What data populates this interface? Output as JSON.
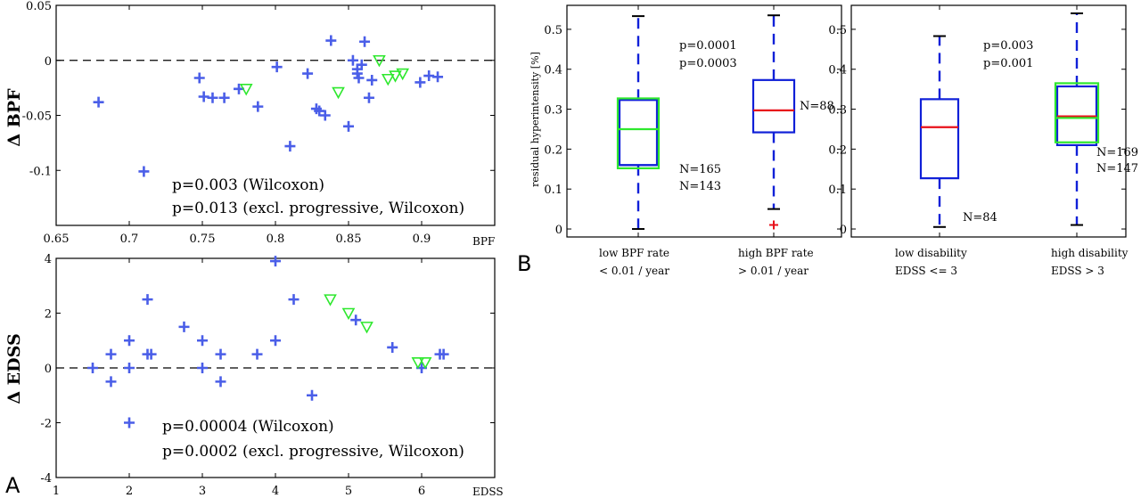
{
  "panel_labels": {
    "a": "A",
    "b": "B"
  },
  "colors": {
    "blue": "#4a5ee8",
    "green": "#2ee82e",
    "box_blue": "#1020d8",
    "median_red": "#e8101a",
    "outlier_red": "#e8101a",
    "black": "#000000"
  },
  "chart_data": [
    {
      "type": "scatter",
      "title": "",
      "xlabel": "BPF",
      "ylabel": "Δ BPF",
      "xlim": [
        0.65,
        0.95
      ],
      "ylim": [
        -0.15,
        0.05
      ],
      "xticks": [
        0.65,
        0.7,
        0.75,
        0.8,
        0.85,
        0.9
      ],
      "xtick_labels": [
        "0.65",
        "0.7",
        "0.75",
        "0.8",
        "0.85",
        "0.9"
      ],
      "yticks": [
        0.05,
        0,
        -0.05,
        -0.1
      ],
      "ytick_labels": [
        "0.05",
        "0",
        "-0.05",
        "-0.1"
      ],
      "reference_line": 0,
      "series": [
        {
          "marker": "plus",
          "color": "#4a5ee8",
          "x": [
            0.679,
            0.71,
            0.748,
            0.751,
            0.757,
            0.765,
            0.775,
            0.788,
            0.801,
            0.81,
            0.822,
            0.828,
            0.83,
            0.834,
            0.838,
            0.85,
            0.853,
            0.856,
            0.856,
            0.857,
            0.859,
            0.861,
            0.864,
            0.866,
            0.899,
            0.905,
            0.911
          ],
          "y": [
            -0.038,
            -0.101,
            -0.016,
            -0.033,
            -0.034,
            -0.034,
            -0.026,
            -0.042,
            -0.006,
            -0.078,
            -0.012,
            -0.044,
            -0.046,
            -0.05,
            0.018,
            -0.06,
            0.0,
            -0.008,
            -0.012,
            -0.016,
            -0.004,
            0.017,
            -0.034,
            -0.018,
            -0.02,
            -0.014,
            -0.015
          ]
        },
        {
          "marker": "triangle",
          "color": "#2ee82e",
          "x": [
            0.78,
            0.843,
            0.871,
            0.877,
            0.882,
            0.887
          ],
          "y": [
            -0.026,
            -0.029,
            0.0,
            -0.017,
            -0.014,
            -0.012
          ]
        }
      ],
      "annotations": [
        {
          "text": "p=0.003 (Wilcoxon)",
          "color": "#4a5ee8"
        },
        {
          "text": "p=0.013 (excl. progressive, Wilcoxon)",
          "color": "#2ee82e"
        }
      ]
    },
    {
      "type": "scatter",
      "title": "",
      "xlabel": "EDSS",
      "ylabel": "Δ EDSS",
      "xlim": [
        1,
        7
      ],
      "ylim": [
        -4,
        4
      ],
      "xticks": [
        1,
        2,
        3,
        4,
        5,
        6
      ],
      "xtick_labels": [
        "1",
        "2",
        "3",
        "4",
        "5",
        "6"
      ],
      "yticks": [
        4,
        2,
        0,
        -2,
        -4
      ],
      "ytick_labels": [
        "4",
        "2",
        "0",
        "-2",
        "-4"
      ],
      "reference_line": 0,
      "series": [
        {
          "marker": "plus",
          "color": "#4a5ee8",
          "x": [
            1.5,
            1.75,
            1.75,
            2.0,
            2.0,
            2.0,
            2.25,
            2.25,
            2.3,
            2.75,
            3.0,
            3.0,
            3.25,
            3.25,
            3.75,
            4.0,
            4.0,
            4.25,
            4.5,
            5.1,
            5.6,
            6.0,
            6.25,
            6.3
          ],
          "y": [
            0.0,
            0.5,
            -0.5,
            1.0,
            0.0,
            -2.0,
            2.5,
            0.5,
            0.5,
            1.5,
            1.0,
            0.0,
            0.5,
            -0.5,
            0.5,
            3.9,
            1.0,
            2.5,
            -1.0,
            1.75,
            0.75,
            0.0,
            0.5,
            0.5
          ]
        },
        {
          "marker": "triangle",
          "color": "#2ee82e",
          "x": [
            4.75,
            5.0,
            5.25,
            5.95,
            6.05
          ],
          "y": [
            2.5,
            2.0,
            1.5,
            0.2,
            0.2
          ]
        }
      ],
      "annotations": [
        {
          "text": "p=0.00004 (Wilcoxon)",
          "color": "#4a5ee8"
        },
        {
          "text": "p=0.0002 (excl. progressive, Wilcoxon)",
          "color": "#2ee82e"
        }
      ]
    },
    {
      "type": "box",
      "title": "",
      "ylabel": "residual hyperintensity [%]",
      "ylim": [
        -0.02,
        0.56
      ],
      "yticks": [
        0,
        0.1,
        0.2,
        0.3,
        0.4,
        0.5
      ],
      "ytick_labels": [
        "0",
        "0.1",
        "0.2",
        "0.3",
        "0.4",
        "0.5"
      ],
      "categories": [
        [
          "low BPF rate",
          "< 0.01 / year"
        ],
        [
          "high BPF rate",
          "> 0.01 / year"
        ]
      ],
      "boxes": [
        {
          "q1": 0.16,
          "median": 0.16,
          "q3": 0.323,
          "lo": 0.0,
          "hi": 0.533,
          "color": "#1020d8",
          "median_color": "#1020d8",
          "n_label": "N=165",
          "n_color": "#000000"
        },
        {
          "q1": 0.152,
          "median": 0.25,
          "q3": 0.327,
          "lo": null,
          "hi": null,
          "color": "#2ee82e",
          "median_color": "#2ee82e",
          "n_label": "N=143",
          "n_color": "#2ee82e",
          "overlay_on": 0
        },
        {
          "q1": 0.242,
          "median": 0.297,
          "q3": 0.373,
          "lo": 0.05,
          "hi": 0.535,
          "color": "#1020d8",
          "median_color": "#e8101a",
          "n_label": "N=88",
          "n_color": "#000000",
          "outliers": [
            0.01
          ]
        }
      ],
      "annotations": [
        {
          "text": "p=0.0001",
          "color": "#000000"
        },
        {
          "text": "p=0.0003",
          "color": "#2ee82e"
        }
      ]
    },
    {
      "type": "box",
      "title": "",
      "ylabel": "",
      "ylim": [
        -0.02,
        0.56
      ],
      "yticks": [
        0,
        0.1,
        0.2,
        0.3,
        0.4,
        0.5
      ],
      "ytick_labels": [
        "0",
        "0.1",
        "0.2",
        "0.3",
        "0.4",
        "0.5"
      ],
      "categories": [
        [
          "low disability",
          "EDSS <= 3"
        ],
        [
          "high disability",
          "EDSS > 3"
        ]
      ],
      "boxes": [
        {
          "q1": 0.127,
          "median": 0.255,
          "q3": 0.325,
          "lo": 0.005,
          "hi": 0.483,
          "color": "#1020d8",
          "median_color": "#e8101a",
          "n_label": "N=84",
          "n_color": "#000000"
        },
        {
          "q1": 0.21,
          "median": 0.282,
          "q3": 0.357,
          "lo": 0.01,
          "hi": 0.54,
          "color": "#1020d8",
          "median_color": "#e8101a",
          "n_label": "N=169",
          "n_color": "#000000"
        },
        {
          "q1": 0.217,
          "median": 0.278,
          "q3": 0.365,
          "lo": null,
          "hi": null,
          "color": "#2ee82e",
          "median_color": "#2ee82e",
          "n_label": "N=147",
          "n_color": "#2ee82e",
          "overlay_on": 1
        }
      ],
      "annotations": [
        {
          "text": "p=0.003",
          "color": "#000000"
        },
        {
          "text": "p=0.001",
          "color": "#2ee82e"
        }
      ]
    }
  ]
}
